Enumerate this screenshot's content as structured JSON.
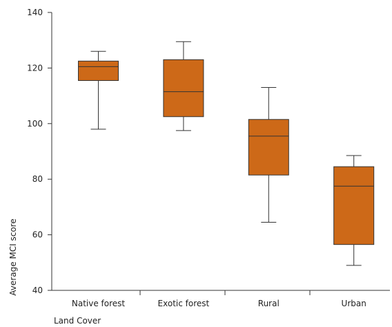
{
  "chart_data": {
    "type": "box",
    "title": "",
    "xlabel": "Land Cover",
    "ylabel": "Average MCI score",
    "ylim": [
      40,
      140
    ],
    "yticks": [
      40,
      60,
      80,
      100,
      120,
      140
    ],
    "grid": false,
    "box_color": "#cd6918",
    "line_color": "#333333",
    "categories": [
      "Native forest",
      "Exotic forest",
      "Rural",
      "Urban"
    ],
    "boxes": [
      {
        "min": 98.0,
        "q1": 115.5,
        "median": 120.5,
        "q3": 122.5,
        "max": 126.0
      },
      {
        "min": 97.5,
        "q1": 102.5,
        "median": 111.5,
        "q3": 123.0,
        "max": 129.5
      },
      {
        "min": 64.5,
        "q1": 81.5,
        "median": 95.5,
        "q3": 101.5,
        "max": 113.0
      },
      {
        "min": 49.0,
        "q1": 56.5,
        "median": 77.5,
        "q3": 84.5,
        "max": 88.5
      }
    ]
  }
}
